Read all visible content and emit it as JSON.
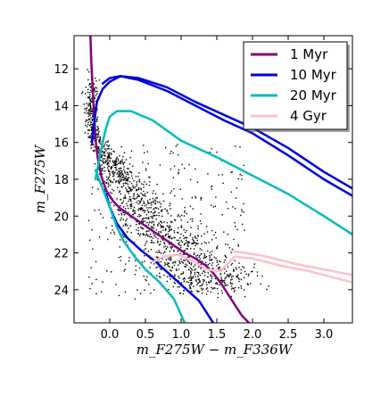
{
  "chart_data": {
    "type": "line",
    "title": "",
    "xlabel": "m_F275W − m_F336W",
    "ylabel": "m_F275W",
    "xlim": [
      -0.5,
      3.4
    ],
    "ylim": [
      25.8,
      10.2
    ],
    "y_inverted": true,
    "x_ticks": [
      "0.0",
      "0.5",
      "1.0",
      "1.5",
      "2.0",
      "2.5",
      "3.0"
    ],
    "x_tick_values": [
      0.0,
      0.5,
      1.0,
      1.5,
      2.0,
      2.5,
      3.0
    ],
    "y_ticks": [
      "12",
      "14",
      "16",
      "18",
      "20",
      "22",
      "24"
    ],
    "y_tick_values": [
      12,
      14,
      16,
      18,
      20,
      22,
      24
    ],
    "grid": false,
    "legend_position": "top-right",
    "series": [
      {
        "name": "1 Myr",
        "color": "#800080",
        "x": [
          -0.27,
          -0.26,
          -0.24,
          -0.22,
          -0.2,
          -0.17,
          -0.12,
          -0.05,
          0.05,
          0.15,
          0.3,
          0.45,
          0.6,
          0.75,
          0.9,
          1.05,
          1.2,
          1.35,
          1.45,
          1.55,
          1.65,
          1.75,
          1.85,
          1.95
        ],
        "y": [
          10.2,
          11.5,
          13.0,
          14.5,
          15.8,
          16.8,
          17.8,
          18.6,
          19.2,
          19.6,
          20.0,
          20.4,
          20.8,
          21.2,
          21.6,
          22.0,
          22.3,
          22.7,
          23.1,
          23.6,
          24.2,
          24.8,
          25.4,
          25.8
        ]
      },
      {
        "name": "10 Myr",
        "color": "#0000dd",
        "x": [
          -0.25,
          -0.22,
          -0.18,
          -0.1,
          0.0,
          0.15,
          0.4,
          0.8,
          1.2,
          1.6,
          2.0,
          2.5,
          3.0,
          3.4
        ],
        "y": [
          16.0,
          15.0,
          13.8,
          13.1,
          12.7,
          12.4,
          12.5,
          13.0,
          13.8,
          14.5,
          15.2,
          16.3,
          17.6,
          18.5
        ]
      },
      {
        "name": "10 Myr (outer)",
        "color": "#0000dd",
        "x": [
          -0.1,
          0.0,
          0.15,
          0.4,
          0.8,
          1.2,
          1.6,
          2.0,
          2.5,
          3.0,
          3.4
        ],
        "y": [
          12.8,
          12.5,
          12.4,
          12.6,
          13.2,
          14.0,
          14.8,
          15.5,
          16.7,
          18.0,
          18.9
        ]
      },
      {
        "name": "10 Myr (lower)",
        "color": "#0000dd",
        "x": [
          -0.05,
          0.0,
          0.1,
          0.25,
          0.45,
          0.65,
          0.85,
          1.05,
          1.25,
          1.45
        ],
        "y": [
          18.8,
          19.5,
          20.4,
          21.2,
          21.9,
          22.5,
          23.2,
          23.9,
          24.6,
          25.8
        ]
      },
      {
        "name": "20 Myr",
        "color": "#00bbbb",
        "x": [
          -0.2,
          -0.15,
          -0.1,
          -0.05,
          0.0,
          0.1,
          0.3,
          0.6,
          1.0,
          1.5,
          2.0,
          2.5,
          3.0,
          3.4
        ],
        "y": [
          18.0,
          17.0,
          16.0,
          15.2,
          14.6,
          14.3,
          14.3,
          14.8,
          15.9,
          16.8,
          17.8,
          18.8,
          20.0,
          21.0
        ]
      },
      {
        "name": "20 Myr (lower)",
        "color": "#00bbbb",
        "x": [
          -0.2,
          -0.1,
          0.0,
          0.1,
          0.2,
          0.35,
          0.5,
          0.7,
          0.9,
          1.05
        ],
        "y": [
          17.5,
          18.5,
          19.5,
          20.6,
          21.4,
          22.2,
          22.9,
          23.6,
          24.5,
          25.8
        ]
      },
      {
        "name": "4 Gyr",
        "color": "#ffc0cb",
        "x": [
          0.6,
          0.75,
          0.95,
          1.15,
          1.35,
          1.55,
          1.75,
          2.0,
          2.4,
          2.8,
          3.1,
          3.4
        ],
        "y": [
          22.5,
          22.2,
          22.1,
          22.4,
          22.9,
          23.0,
          22.2,
          22.3,
          22.7,
          23.0,
          23.3,
          23.6
        ]
      },
      {
        "name": "4 Gyr (upper)",
        "color": "#ffc0cb",
        "x": [
          1.7,
          1.9,
          2.2,
          2.6,
          3.0,
          3.4
        ],
        "y": [
          21.9,
          22.0,
          22.2,
          22.6,
          22.9,
          23.2
        ]
      }
    ],
    "legend": [
      {
        "label": "1 Myr",
        "color": "#800080"
      },
      {
        "label": "10 Myr",
        "color": "#0000dd"
      },
      {
        "label": "20 Myr",
        "color": "#00bbbb"
      },
      {
        "label": "4 Gyr",
        "color": "#ffc0cb"
      }
    ],
    "scatter": {
      "color": "#000000",
      "description_of_density": "dense main sequence from x≈-0.3,y≈13 down to x≈1.2,y≈22"
    }
  }
}
